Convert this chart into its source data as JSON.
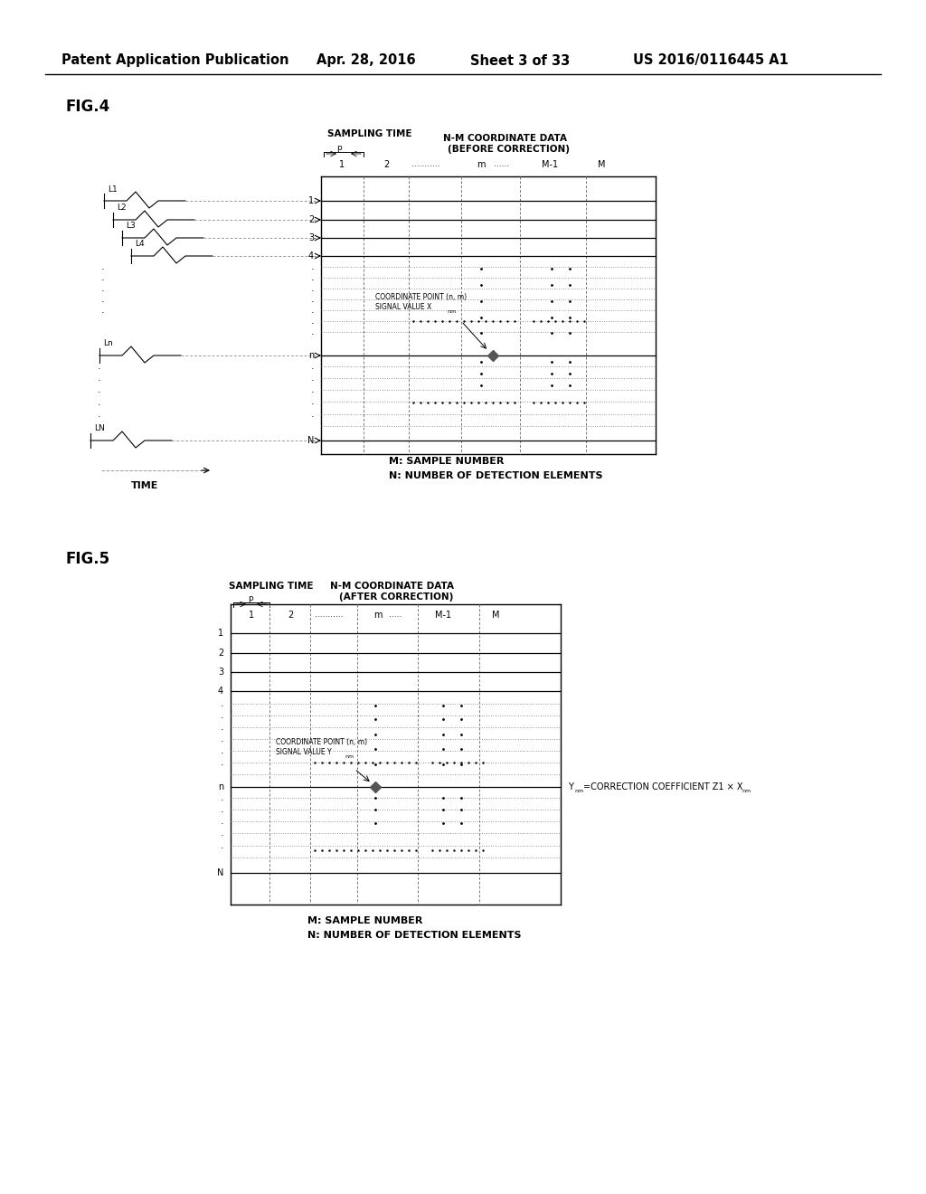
{
  "title_header": "Patent Application Publication",
  "date_header": "Apr. 28, 2016",
  "sheet_header": "Sheet 3 of 33",
  "patent_header": "US 2016/0116445 A1",
  "fig4_label": "FIG.4",
  "fig5_label": "FIG.5",
  "background_color": "#ffffff"
}
